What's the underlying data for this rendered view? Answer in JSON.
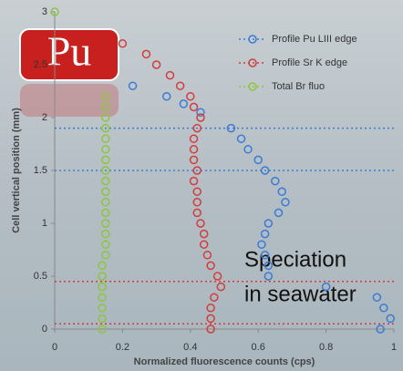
{
  "chart_data": {
    "type": "scatter",
    "xlabel": "Normalized fluorescence counts (cps)",
    "ylabel": "Cell vertical position (mm)",
    "xlim": [
      0,
      1
    ],
    "xticks": [
      0,
      0.2,
      0.4,
      0.6,
      0.8,
      1
    ],
    "ylim": [
      0,
      3
    ],
    "yticks": [
      0,
      0.5,
      1,
      1.5,
      2,
      2.5,
      3
    ],
    "legend": "upper right",
    "series": [
      {
        "name": "Profile Pu LIII edge",
        "color": "#3a7bd5",
        "x": [
          0.23,
          0.33,
          0.38,
          0.43,
          0.52,
          0.55,
          0.57,
          0.6,
          0.62,
          0.65,
          0.67,
          0.68,
          0.66,
          0.63,
          0.62,
          0.61,
          0.62,
          0.63,
          0.63,
          0.8,
          0.95,
          0.97,
          0.99,
          0.96
        ],
        "values": [
          2.3,
          2.2,
          2.13,
          2.05,
          1.9,
          1.8,
          1.7,
          1.6,
          1.5,
          1.4,
          1.3,
          1.2,
          1.1,
          1.0,
          0.9,
          0.8,
          0.7,
          0.6,
          0.5,
          0.4,
          0.3,
          0.2,
          0.1,
          0.0
        ]
      },
      {
        "name": "Profile Sr K edge",
        "color": "#d23c3c",
        "x": [
          0.2,
          0.27,
          0.3,
          0.34,
          0.37,
          0.4,
          0.41,
          0.43,
          0.42,
          0.41,
          0.41,
          0.41,
          0.42,
          0.41,
          0.42,
          0.42,
          0.42,
          0.43,
          0.44,
          0.44,
          0.45,
          0.46,
          0.48,
          0.49,
          0.47,
          0.46,
          0.46,
          0.46
        ],
        "values": [
          2.7,
          2.6,
          2.5,
          2.4,
          2.3,
          2.2,
          2.1,
          2.0,
          1.9,
          1.8,
          1.7,
          1.6,
          1.5,
          1.4,
          1.3,
          1.2,
          1.1,
          1.0,
          0.9,
          0.8,
          0.7,
          0.6,
          0.5,
          0.4,
          0.3,
          0.2,
          0.1,
          0.0
        ]
      },
      {
        "name": "Total Br fluo",
        "color": "#8cc63f",
        "x": [
          0,
          0.15,
          0.15,
          0.15,
          0.15,
          0.15,
          0.15,
          0.15,
          0.15,
          0.15,
          0.15,
          0.15,
          0.15,
          0.15,
          0.15,
          0.15,
          0.15,
          0.14,
          0.14,
          0.14,
          0.14,
          0.14,
          0.14,
          0.14
        ],
        "values": [
          3.0,
          2.2,
          2.1,
          2.0,
          1.9,
          1.8,
          1.7,
          1.6,
          1.5,
          1.4,
          1.3,
          1.2,
          1.1,
          1.0,
          0.9,
          0.8,
          0.7,
          0.6,
          0.5,
          0.4,
          0.3,
          0.2,
          0.1,
          0.0
        ]
      }
    ],
    "reference_lines": [
      {
        "value": 1.9,
        "color": "#3a7bd5"
      },
      {
        "value": 1.5,
        "color": "#3a7bd5"
      },
      {
        "value": 0.45,
        "color": "#d23c3c"
      },
      {
        "value": 0.05,
        "color": "#d23c3c"
      }
    ],
    "badge": "Pu",
    "annotation": [
      "Speciation",
      "in seawater"
    ]
  }
}
